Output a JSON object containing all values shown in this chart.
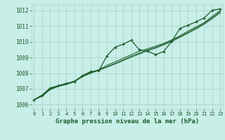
{
  "title": "Graphe pression niveau de la mer (hPa)",
  "bg_color": "#c8eee8",
  "plot_bg_color": "#c8eee8",
  "grid_color": "#b0d8d0",
  "line_color": "#1a5c2a",
  "xlim": [
    0,
    23
  ],
  "ylim": [
    1006,
    1012
  ],
  "xticks": [
    0,
    1,
    2,
    3,
    4,
    5,
    6,
    7,
    8,
    9,
    10,
    11,
    12,
    13,
    14,
    15,
    16,
    17,
    18,
    19,
    20,
    21,
    22,
    23
  ],
  "yticks": [
    1006,
    1007,
    1008,
    1009,
    1010,
    1011,
    1012
  ],
  "series_main": [
    1006.3,
    1006.6,
    1007.05,
    1007.2,
    1007.35,
    1007.45,
    1007.85,
    1008.1,
    1008.15,
    1009.1,
    1009.65,
    1009.85,
    1010.1,
    1009.5,
    1009.42,
    1009.18,
    1009.38,
    1010.02,
    1010.85,
    1011.05,
    1011.28,
    1011.52,
    1012.02,
    1012.1
  ],
  "series_smooth1": [
    1006.3,
    1006.55,
    1007.0,
    1007.2,
    1007.32,
    1007.5,
    1007.82,
    1008.05,
    1008.22,
    1008.5,
    1008.72,
    1008.95,
    1009.18,
    1009.4,
    1009.55,
    1009.72,
    1009.9,
    1010.12,
    1010.38,
    1010.68,
    1010.95,
    1011.22,
    1011.62,
    1012.0
  ],
  "series_smooth2": [
    1006.3,
    1006.55,
    1006.98,
    1007.18,
    1007.3,
    1007.48,
    1007.8,
    1008.02,
    1008.2,
    1008.42,
    1008.62,
    1008.85,
    1009.08,
    1009.28,
    1009.48,
    1009.65,
    1009.85,
    1010.08,
    1010.32,
    1010.6,
    1010.88,
    1011.18,
    1011.55,
    1011.92
  ],
  "series_smooth3": [
    1006.3,
    1006.52,
    1006.95,
    1007.15,
    1007.28,
    1007.45,
    1007.78,
    1008.0,
    1008.18,
    1008.38,
    1008.58,
    1008.8,
    1009.02,
    1009.22,
    1009.42,
    1009.6,
    1009.8,
    1010.02,
    1010.28,
    1010.55,
    1010.82,
    1011.12,
    1011.48,
    1011.85
  ]
}
